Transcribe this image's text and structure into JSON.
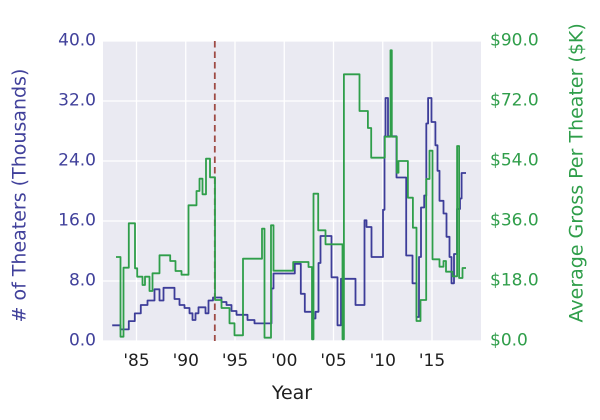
{
  "figure": {
    "background": "#ffffff",
    "plot_background": "#eaeaf2",
    "grid_color": "#ffffff",
    "accent_blue": "#3d3d99",
    "accent_green": "#2f9e4a",
    "vline_color": "#9e4b45"
  },
  "axes": {
    "x": {
      "label": "Year",
      "ticks": [
        "'85",
        "'90",
        "'95",
        "'00",
        "'05",
        "'10",
        "'15"
      ],
      "tick_years": [
        1985,
        1990,
        1995,
        2000,
        2005,
        2010,
        2015
      ],
      "range": [
        1981.6,
        2020.3
      ]
    },
    "y_left": {
      "label": "# of Theaters (Thousands)",
      "ticks": [
        "0.0",
        "8.0",
        "16.0",
        "24.0",
        "32.0",
        "40.0"
      ],
      "tick_values": [
        0,
        8,
        16,
        24,
        32,
        40
      ],
      "range": [
        0,
        40
      ],
      "color": "#41419b"
    },
    "y_right": {
      "label": "Average Gross Per Theater ($K)",
      "ticks": [
        "$0.0",
        "$18.0",
        "$36.0",
        "$54.0",
        "$72.0",
        "$90.0"
      ],
      "tick_values": [
        0,
        18,
        36,
        54,
        72,
        90
      ],
      "range": [
        0,
        90
      ],
      "color": "#2f9e4a"
    }
  },
  "chart_data": {
    "type": "line",
    "drawstyle": "steps-post",
    "grid": true,
    "legend": "none",
    "series": [
      {
        "name": "theaters_thousands",
        "label": "# of Theaters (Thousands)",
        "axis": "left",
        "color": "#3d3d99",
        "points": [
          [
            1982.53,
            2.1
          ],
          [
            1983.38,
            1.55
          ],
          [
            1984.22,
            2.66
          ],
          [
            1984.83,
            3.68
          ],
          [
            1985.44,
            4.8
          ],
          [
            1986.12,
            5.4
          ],
          [
            1986.83,
            6.9
          ],
          [
            1987.33,
            5.4
          ],
          [
            1987.74,
            7.1
          ],
          [
            1988.86,
            5.6
          ],
          [
            1989.37,
            4.8
          ],
          [
            1989.87,
            4.4
          ],
          [
            1990.38,
            3.7
          ],
          [
            1990.69,
            2.8
          ],
          [
            1990.99,
            3.7
          ],
          [
            1991.29,
            4.5
          ],
          [
            1992.0,
            3.7
          ],
          [
            1992.31,
            5.4
          ],
          [
            1992.77,
            5.8
          ],
          [
            1993.63,
            5.2
          ],
          [
            1994.14,
            4.8
          ],
          [
            1994.64,
            4.0
          ],
          [
            1995.15,
            3.5
          ],
          [
            1996.27,
            2.8
          ],
          [
            1996.98,
            2.35
          ],
          [
            1998.71,
            7.0
          ],
          [
            1998.91,
            9.0
          ],
          [
            2001.07,
            10.3
          ],
          [
            2001.68,
            6.3
          ],
          [
            2002.09,
            3.9
          ],
          [
            2002.87,
            3.0
          ],
          [
            2003.17,
            3.9
          ],
          [
            2003.48,
            10.4
          ],
          [
            2003.68,
            14.0
          ],
          [
            2004.8,
            8.5
          ],
          [
            2005.41,
            2.1
          ],
          [
            2005.76,
            8.3
          ],
          [
            2007.23,
            4.8
          ],
          [
            2008.15,
            16.1
          ],
          [
            2008.35,
            15.2
          ],
          [
            2008.86,
            11.2
          ],
          [
            2010.03,
            17.5
          ],
          [
            2010.18,
            27.3
          ],
          [
            2010.28,
            32.4
          ],
          [
            2010.53,
            27.3
          ],
          [
            2011.4,
            21.8
          ],
          [
            2012.38,
            11.4
          ],
          [
            2013.02,
            7.7
          ],
          [
            2013.43,
            3.2
          ],
          [
            2013.68,
            11.2
          ],
          [
            2013.88,
            17.8
          ],
          [
            2014.21,
            19.4
          ],
          [
            2014.42,
            29.0
          ],
          [
            2014.6,
            32.4
          ],
          [
            2014.95,
            29.2
          ],
          [
            2015.35,
            26.1
          ],
          [
            2015.56,
            22.7
          ],
          [
            2015.76,
            18.7
          ],
          [
            2016.17,
            17.0
          ],
          [
            2016.47,
            13.9
          ],
          [
            2016.78,
            11.2
          ],
          [
            2016.98,
            7.7
          ],
          [
            2017.23,
            11.6
          ],
          [
            2017.54,
            17.6
          ],
          [
            2017.84,
            19.0
          ],
          [
            2018.0,
            22.4
          ],
          [
            2018.45,
            22.4
          ]
        ]
      },
      {
        "name": "avg_gross_per_theater_k",
        "label": "Average Gross Per Theater ($K)",
        "axis": "right",
        "color": "#2f9e4a",
        "points": [
          [
            1982.92,
            25.2
          ],
          [
            1983.38,
            1.3
          ],
          [
            1983.68,
            22.0
          ],
          [
            1984.22,
            35.3
          ],
          [
            1984.85,
            21.8
          ],
          [
            1985.07,
            19.3
          ],
          [
            1985.61,
            16.8
          ],
          [
            1985.86,
            19.3
          ],
          [
            1986.32,
            15.0
          ],
          [
            1986.62,
            20.3
          ],
          [
            1987.33,
            25.7
          ],
          [
            1988.42,
            24.0
          ],
          [
            1988.96,
            21.0
          ],
          [
            1989.57,
            19.9
          ],
          [
            1990.28,
            40.7
          ],
          [
            1991.09,
            45.0
          ],
          [
            1991.4,
            48.7
          ],
          [
            1991.7,
            44.0
          ],
          [
            1992.06,
            54.7
          ],
          [
            1992.46,
            49.1
          ],
          [
            1992.97,
            12.3
          ],
          [
            1993.63,
            9.9
          ],
          [
            1994.44,
            5.3
          ],
          [
            1994.95,
            1.7
          ],
          [
            1995.81,
            24.7
          ],
          [
            1997.74,
            33.7
          ],
          [
            1997.99,
            1.0
          ],
          [
            1998.65,
            34.7
          ],
          [
            1998.91,
            21.1
          ],
          [
            2000.91,
            23.7
          ],
          [
            2002.46,
            22.2
          ],
          [
            2002.82,
            0.5
          ],
          [
            2002.97,
            44.2
          ],
          [
            2003.45,
            33.2
          ],
          [
            2004.19,
            29.0
          ],
          [
            2005.91,
            0.5
          ],
          [
            2006.06,
            80.0
          ],
          [
            2007.64,
            69.0
          ],
          [
            2008.49,
            63.9
          ],
          [
            2008.83,
            55.0
          ],
          [
            2010.21,
            61.3
          ],
          [
            2010.79,
            87.2
          ],
          [
            2010.92,
            61.3
          ],
          [
            2011.43,
            50.5
          ],
          [
            2011.6,
            54.0
          ],
          [
            2012.55,
            43.0
          ],
          [
            2013.06,
            34.0
          ],
          [
            2013.43,
            6.0
          ],
          [
            2013.83,
            12.3
          ],
          [
            2014.41,
            48.6
          ],
          [
            2014.75,
            57.1
          ],
          [
            2015.05,
            24.5
          ],
          [
            2015.76,
            22.3
          ],
          [
            2016.17,
            24.0
          ],
          [
            2016.42,
            20.8
          ],
          [
            2017.08,
            19.4
          ],
          [
            2017.55,
            58.5
          ],
          [
            2017.75,
            18.9
          ],
          [
            2018.1,
            21.9
          ],
          [
            2018.45,
            21.9
          ]
        ]
      }
    ],
    "annotations": [
      {
        "type": "vline",
        "x": 1992.95,
        "color": "#9e4b45",
        "style": "dashed"
      }
    ]
  }
}
